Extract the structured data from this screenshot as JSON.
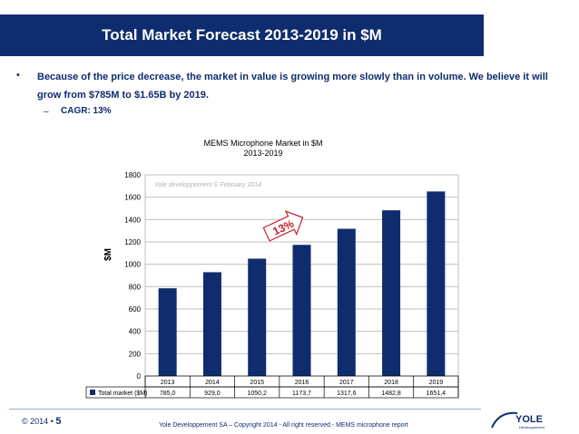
{
  "slide": {
    "title": "Total Market Forecast 2013-2019 in $M",
    "bullet_marker": "•",
    "bullet": "Because of the price decrease, the market in value is growing more slowly than in volume. We believe it will grow from $785M to $1.65B by 2019.",
    "sub_marker": "–",
    "sub_bullet": "CAGR: 13%"
  },
  "chart_data": {
    "type": "bar",
    "title": "MEMS Microphone Market in $M",
    "subtitle": "2013-2019",
    "ylabel": "$M",
    "xlabel": "",
    "categories": [
      "2013",
      "2014",
      "2015",
      "2016",
      "2017",
      "2018",
      "2019"
    ],
    "series": [
      {
        "name": "Total market ($M)",
        "values": [
          785.0,
          929.0,
          1050.2,
          1173.7,
          1317.6,
          1482.8,
          1651.4
        ]
      }
    ],
    "table_values": [
      "785,0",
      "929,0",
      "1050,2",
      "1173,7",
      "1317,6",
      "1482,8",
      "1651,4"
    ],
    "ylim": [
      0,
      1800
    ],
    "yticks": [
      "0",
      "200",
      "400",
      "600",
      "800",
      "1000",
      "1200",
      "1400",
      "1600",
      "1800"
    ],
    "grid": true,
    "bar_color": "#0f2c6e",
    "watermark": "Yole développement  © February 2014",
    "annotation": "13%",
    "annotation_color": "#c0202a"
  },
  "footer": {
    "copyright": "© 2014 •",
    "page_number": "5",
    "center": "Yole Developpement SA – Copyright 2014 - All right reserved.- MEMS microphone report",
    "logo_text": "YOLE",
    "logo_subtext": "Développement"
  }
}
